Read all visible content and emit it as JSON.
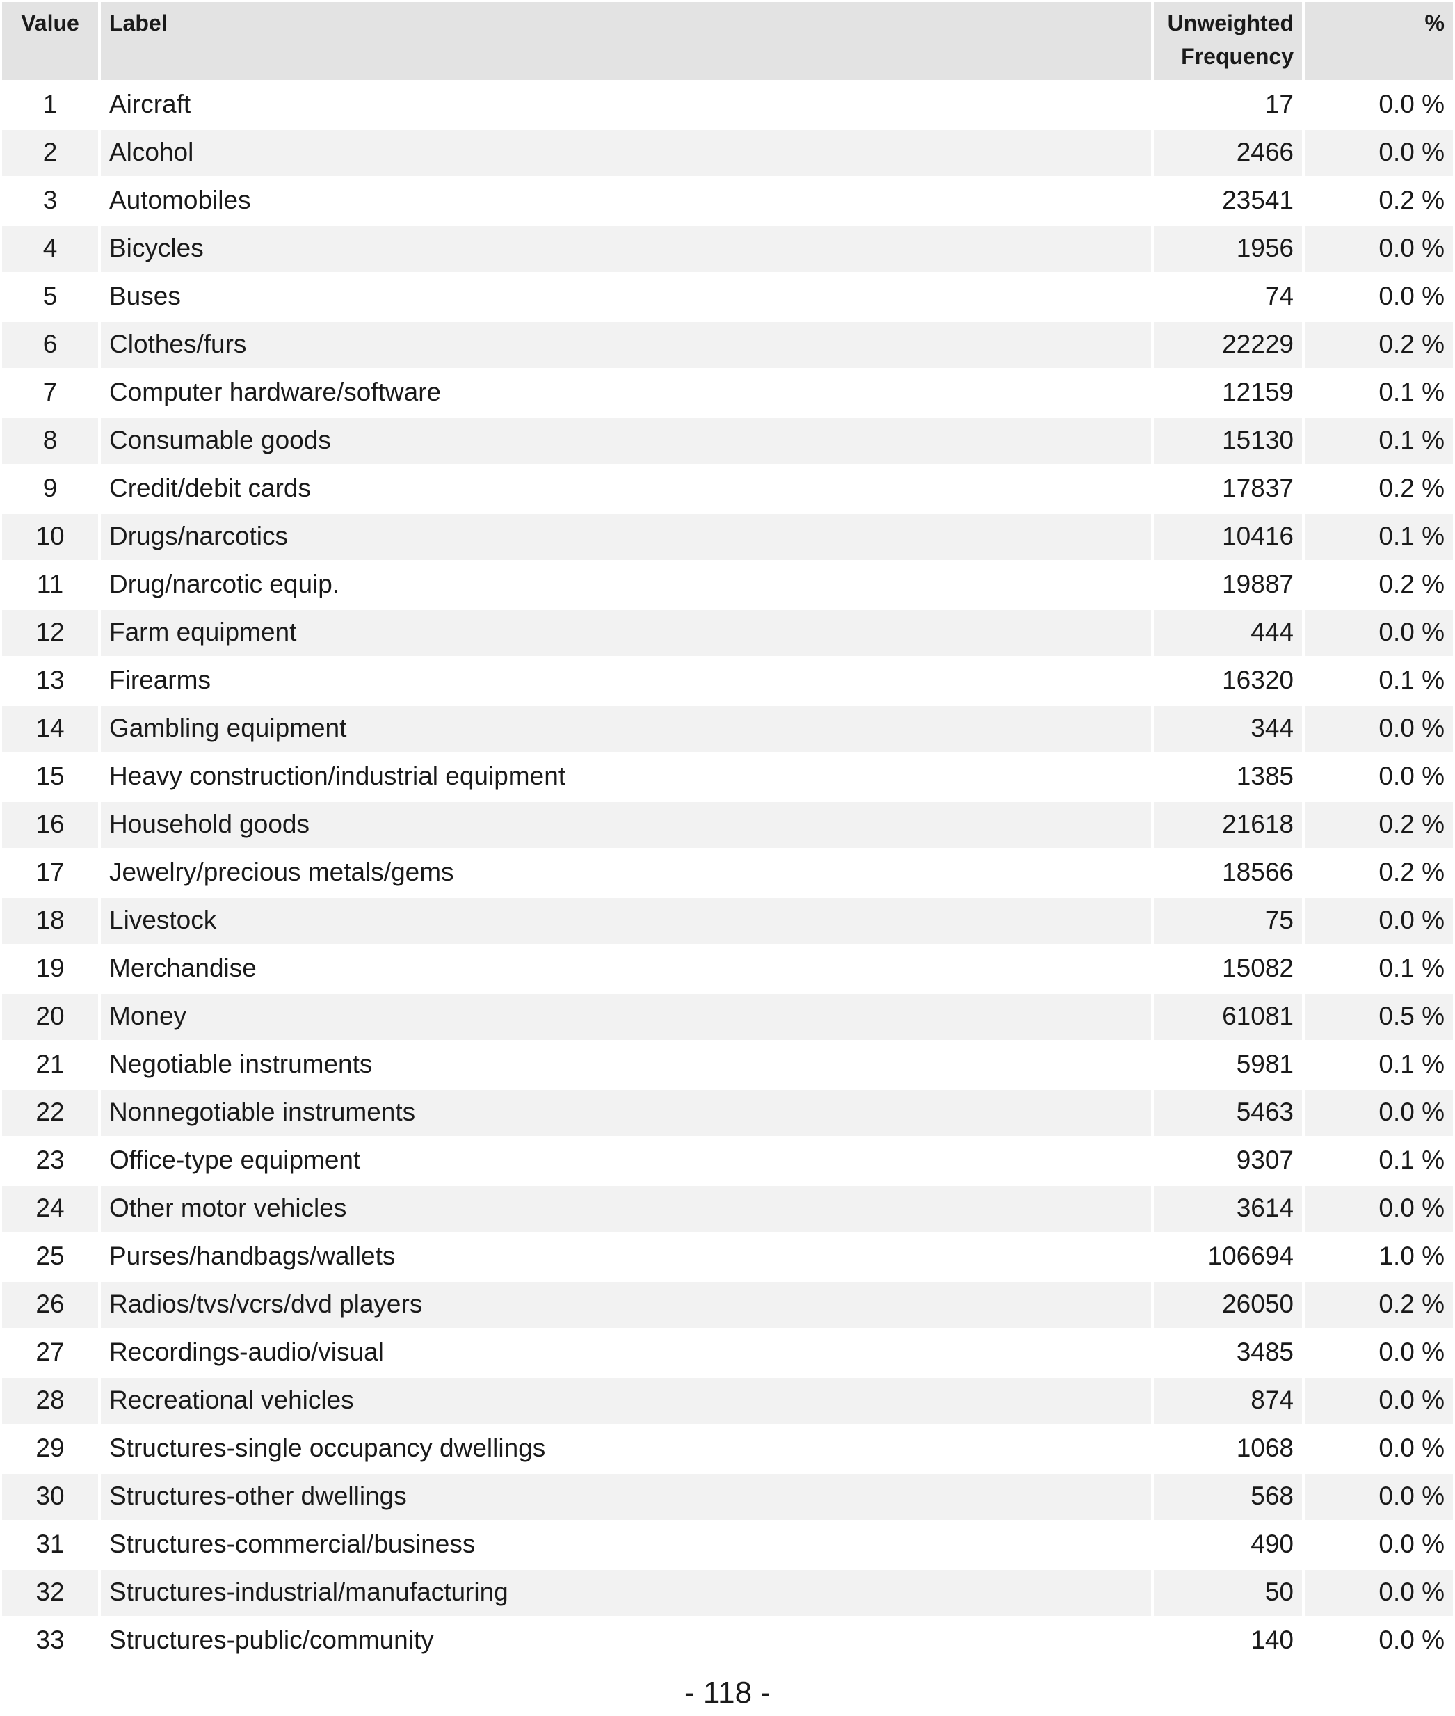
{
  "table": {
    "headers": {
      "value": "Value",
      "label": "Label",
      "frequency_line1": "Unweighted",
      "frequency_line2": "Frequency",
      "percent": "%"
    },
    "rows": [
      {
        "value": "1",
        "label": "Aircraft",
        "frequency": "17",
        "percent": "0.0 %"
      },
      {
        "value": "2",
        "label": "Alcohol",
        "frequency": "2466",
        "percent": "0.0 %"
      },
      {
        "value": "3",
        "label": "Automobiles",
        "frequency": "23541",
        "percent": "0.2 %"
      },
      {
        "value": "4",
        "label": "Bicycles",
        "frequency": "1956",
        "percent": "0.0 %"
      },
      {
        "value": "5",
        "label": "Buses",
        "frequency": "74",
        "percent": "0.0 %"
      },
      {
        "value": "6",
        "label": "Clothes/furs",
        "frequency": "22229",
        "percent": "0.2 %"
      },
      {
        "value": "7",
        "label": "Computer hardware/software",
        "frequency": "12159",
        "percent": "0.1 %"
      },
      {
        "value": "8",
        "label": "Consumable goods",
        "frequency": "15130",
        "percent": "0.1 %"
      },
      {
        "value": "9",
        "label": "Credit/debit cards",
        "frequency": "17837",
        "percent": "0.2 %"
      },
      {
        "value": "10",
        "label": "Drugs/narcotics",
        "frequency": "10416",
        "percent": "0.1 %"
      },
      {
        "value": "11",
        "label": "Drug/narcotic equip.",
        "frequency": "19887",
        "percent": "0.2 %"
      },
      {
        "value": "12",
        "label": "Farm equipment",
        "frequency": "444",
        "percent": "0.0 %"
      },
      {
        "value": "13",
        "label": "Firearms",
        "frequency": "16320",
        "percent": "0.1 %"
      },
      {
        "value": "14",
        "label": "Gambling equipment",
        "frequency": "344",
        "percent": "0.0 %"
      },
      {
        "value": "15",
        "label": "Heavy construction/industrial equipment",
        "frequency": "1385",
        "percent": "0.0 %"
      },
      {
        "value": "16",
        "label": "Household goods",
        "frequency": "21618",
        "percent": "0.2 %"
      },
      {
        "value": "17",
        "label": "Jewelry/precious metals/gems",
        "frequency": "18566",
        "percent": "0.2 %"
      },
      {
        "value": "18",
        "label": "Livestock",
        "frequency": "75",
        "percent": "0.0 %"
      },
      {
        "value": "19",
        "label": "Merchandise",
        "frequency": "15082",
        "percent": "0.1 %"
      },
      {
        "value": "20",
        "label": "Money",
        "frequency": "61081",
        "percent": "0.5 %"
      },
      {
        "value": "21",
        "label": "Negotiable instruments",
        "frequency": "5981",
        "percent": "0.1 %"
      },
      {
        "value": "22",
        "label": "Nonnegotiable instruments",
        "frequency": "5463",
        "percent": "0.0 %"
      },
      {
        "value": "23",
        "label": "Office-type equipment",
        "frequency": "9307",
        "percent": "0.1 %"
      },
      {
        "value": "24",
        "label": "Other motor vehicles",
        "frequency": "3614",
        "percent": "0.0 %"
      },
      {
        "value": "25",
        "label": "Purses/handbags/wallets",
        "frequency": "106694",
        "percent": "1.0 %"
      },
      {
        "value": "26",
        "label": "Radios/tvs/vcrs/dvd players",
        "frequency": "26050",
        "percent": "0.2 %"
      },
      {
        "value": "27",
        "label": "Recordings-audio/visual",
        "frequency": "3485",
        "percent": "0.0 %"
      },
      {
        "value": "28",
        "label": "Recreational vehicles",
        "frequency": "874",
        "percent": "0.0 %"
      },
      {
        "value": "29",
        "label": "Structures-single occupancy dwellings",
        "frequency": "1068",
        "percent": "0.0 %"
      },
      {
        "value": "30",
        "label": "Structures-other dwellings",
        "frequency": "568",
        "percent": "0.0 %"
      },
      {
        "value": "31",
        "label": "Structures-commercial/business",
        "frequency": "490",
        "percent": "0.0 %"
      },
      {
        "value": "32",
        "label": "Structures-industrial/manufacturing",
        "frequency": "50",
        "percent": "0.0 %"
      },
      {
        "value": "33",
        "label": "Structures-public/community",
        "frequency": "140",
        "percent": "0.0 %"
      }
    ]
  },
  "page_number": "- 118 -"
}
